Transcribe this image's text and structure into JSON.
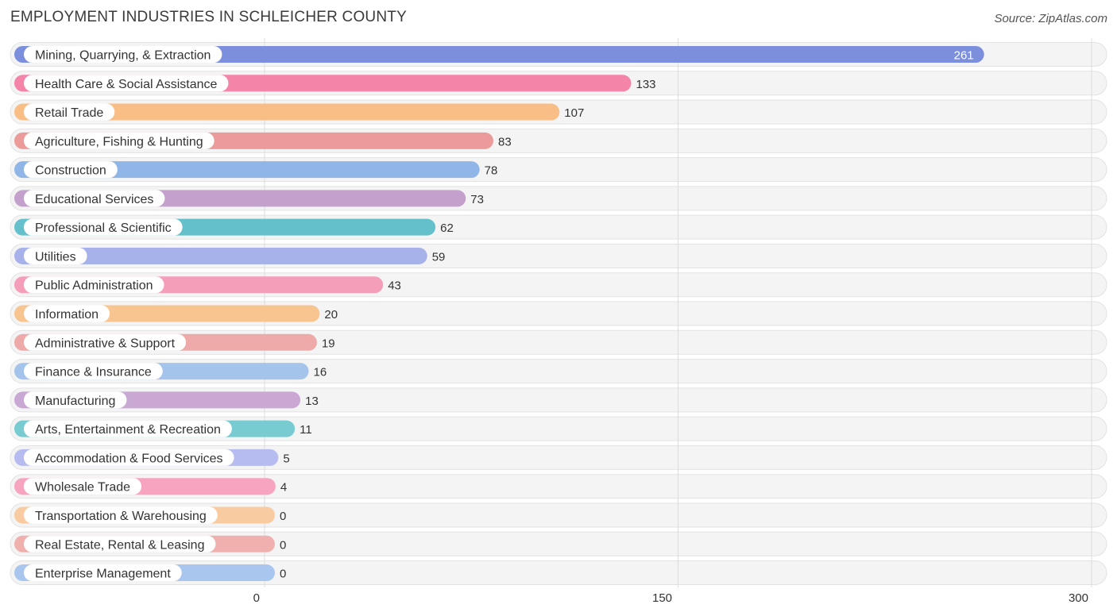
{
  "header": {
    "title": "EMPLOYMENT INDUSTRIES IN SCHLEICHER COUNTY",
    "source": "Source: ZipAtlas.com"
  },
  "chart_data": {
    "type": "bar",
    "orientation": "horizontal",
    "title": "EMPLOYMENT INDUSTRIES IN SCHLEICHER COUNTY",
    "xlim": [
      0,
      300
    ],
    "xticks": [
      0,
      150,
      300
    ],
    "grid": true,
    "categories": [
      "Mining, Quarrying, & Extraction",
      "Health Care & Social Assistance",
      "Retail Trade",
      "Agriculture, Fishing & Hunting",
      "Construction",
      "Educational Services",
      "Professional & Scientific",
      "Utilities",
      "Public Administration",
      "Information",
      "Administrative & Support",
      "Finance & Insurance",
      "Manufacturing",
      "Arts, Entertainment & Recreation",
      "Accommodation & Food Services",
      "Wholesale Trade",
      "Transportation & Warehousing",
      "Real Estate, Rental & Leasing",
      "Enterprise Management"
    ],
    "values": [
      261,
      133,
      107,
      83,
      78,
      73,
      62,
      59,
      43,
      20,
      19,
      16,
      13,
      11,
      5,
      4,
      0,
      0,
      0
    ],
    "colors": [
      "#7b8fdc",
      "#f484a8",
      "#f8be86",
      "#eb9c9a",
      "#8fb6e6",
      "#c4a0cc",
      "#64c1cb",
      "#a7b1ea",
      "#f59eba",
      "#f8c48f",
      "#eeaaa8",
      "#a5c4ec",
      "#c9a8d4",
      "#79cbd2",
      "#b6bcf0",
      "#f6a4c0",
      "#f8cba0",
      "#f0b0ae",
      "#a9c6ef"
    ]
  }
}
